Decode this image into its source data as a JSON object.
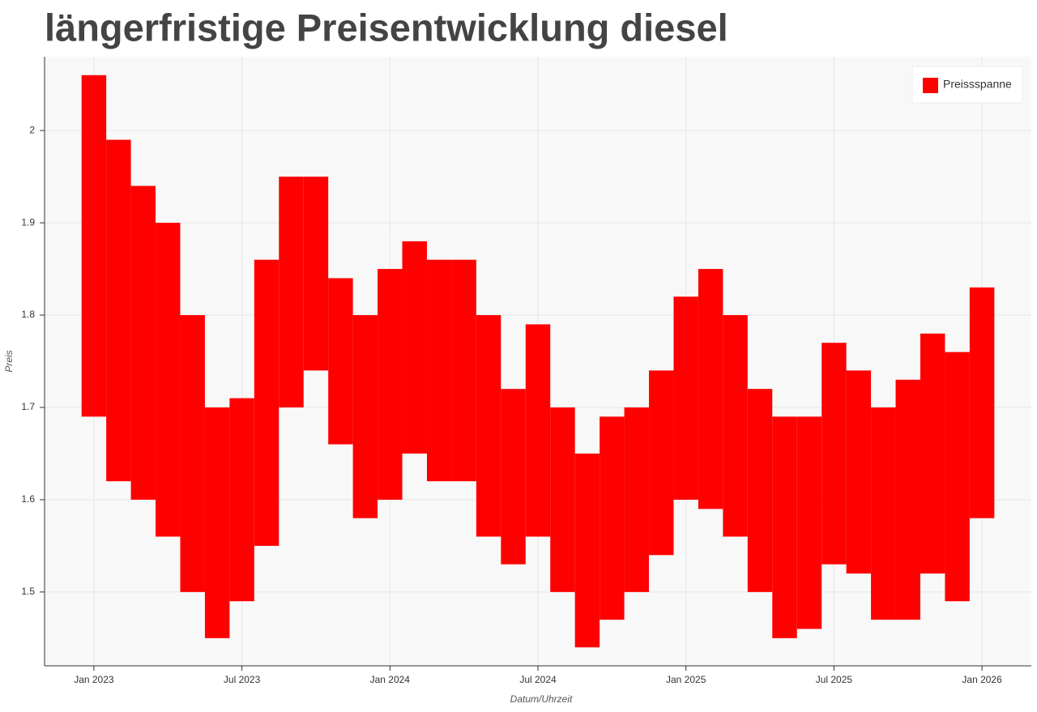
{
  "chart_data": {
    "type": "band",
    "title": "längerfristige Preisentwicklung diesel",
    "x_label": "Datum/Uhrzeit",
    "y_label": "Preis",
    "x": [
      "2023-01",
      "2023-02",
      "2023-03",
      "2023-04",
      "2023-05",
      "2023-06",
      "2023-07",
      "2023-08",
      "2023-09",
      "2023-10",
      "2023-11",
      "2023-12",
      "2024-01",
      "2024-02",
      "2024-03",
      "2024-04",
      "2024-05",
      "2024-06",
      "2024-07",
      "2024-08",
      "2024-09",
      "2024-10",
      "2024-11",
      "2024-12",
      "2025-01",
      "2025-02",
      "2025-03",
      "2025-04",
      "2025-05",
      "2025-06",
      "2025-07",
      "2025-08",
      "2025-09",
      "2025-10",
      "2025-11",
      "2025-12",
      "2026-01"
    ],
    "series": [
      {
        "name": "Preissspanne",
        "color": "#ff0000",
        "low": [
          1.69,
          1.62,
          1.6,
          1.56,
          1.5,
          1.45,
          1.49,
          1.55,
          1.7,
          1.74,
          1.66,
          1.58,
          1.6,
          1.65,
          1.62,
          1.62,
          1.56,
          1.53,
          1.56,
          1.5,
          1.44,
          1.47,
          1.5,
          1.54,
          1.6,
          1.59,
          1.56,
          1.5,
          1.45,
          1.46,
          1.53,
          1.52,
          1.47,
          1.47,
          1.52,
          1.49,
          1.58
        ],
        "high": [
          2.06,
          1.99,
          1.94,
          1.9,
          1.8,
          1.7,
          1.71,
          1.86,
          1.95,
          1.95,
          1.84,
          1.8,
          1.85,
          1.88,
          1.86,
          1.86,
          1.8,
          1.72,
          1.79,
          1.7,
          1.65,
          1.69,
          1.7,
          1.74,
          1.82,
          1.85,
          1.8,
          1.72,
          1.69,
          1.69,
          1.77,
          1.74,
          1.7,
          1.73,
          1.78,
          1.76,
          1.83
        ]
      }
    ],
    "xlim": [
      "2022-11",
      "2026-03"
    ],
    "xticks": [
      {
        "value": "2023-01",
        "label": "Jan 2023"
      },
      {
        "value": "2023-07",
        "label": "Jul 2023"
      },
      {
        "value": "2024-01",
        "label": "Jan 2024"
      },
      {
        "value": "2024-07",
        "label": "Jul 2024"
      },
      {
        "value": "2025-01",
        "label": "Jan 2025"
      },
      {
        "value": "2025-07",
        "label": "Jul 2025"
      },
      {
        "value": "2026-01",
        "label": "Jan 2026"
      }
    ],
    "ylim": [
      1.42,
      2.08
    ],
    "yticks": [
      1.5,
      1.6,
      1.7,
      1.8,
      1.9,
      2
    ],
    "grid": true,
    "legend": "top-right"
  }
}
